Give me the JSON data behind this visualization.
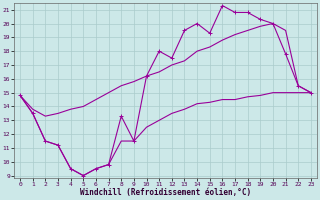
{
  "xlabel": "Windchill (Refroidissement éolien,°C)",
  "bg_color": "#cce8e8",
  "grid_color": "#aacccc",
  "line_color": "#990099",
  "zigzag_x": [
    0,
    1,
    2,
    3,
    4,
    5,
    6,
    7,
    8,
    9,
    10,
    11,
    12,
    13,
    14,
    15,
    16,
    17,
    18,
    19,
    20,
    21,
    22,
    23
  ],
  "zigzag_y": [
    14.8,
    13.5,
    11.5,
    11.2,
    9.5,
    9.0,
    9.5,
    9.8,
    13.3,
    11.5,
    16.2,
    18.0,
    17.5,
    19.5,
    20.0,
    19.3,
    21.3,
    20.8,
    20.8,
    20.3,
    20.0,
    17.8,
    15.5,
    15.0
  ],
  "upper_x": [
    0,
    1,
    2,
    3,
    4,
    5,
    6,
    7,
    8,
    9,
    10,
    11,
    12,
    13,
    14,
    15,
    16,
    17,
    18,
    19,
    20,
    21,
    22,
    23
  ],
  "upper_y": [
    14.8,
    13.8,
    13.3,
    13.5,
    13.8,
    14.0,
    14.5,
    15.0,
    15.5,
    15.8,
    16.2,
    16.5,
    17.0,
    17.3,
    18.0,
    18.3,
    18.8,
    19.2,
    19.5,
    19.8,
    20.0,
    19.5,
    15.5,
    15.0
  ],
  "lower_x": [
    0,
    1,
    2,
    3,
    4,
    5,
    6,
    7,
    8,
    9,
    10,
    11,
    12,
    13,
    14,
    15,
    16,
    17,
    18,
    19,
    20,
    21,
    22,
    23
  ],
  "lower_y": [
    14.8,
    13.5,
    11.5,
    11.2,
    9.5,
    9.0,
    9.5,
    9.8,
    11.5,
    11.5,
    12.5,
    13.0,
    13.5,
    13.8,
    14.2,
    14.3,
    14.5,
    14.5,
    14.7,
    14.8,
    15.0,
    15.0,
    15.0,
    15.0
  ],
  "ylim": [
    8.8,
    21.5
  ],
  "xlim": [
    -0.5,
    23.5
  ],
  "yticks": [
    9,
    10,
    11,
    12,
    13,
    14,
    15,
    16,
    17,
    18,
    19,
    20,
    21
  ],
  "xticks": [
    0,
    1,
    2,
    3,
    4,
    5,
    6,
    7,
    8,
    9,
    10,
    11,
    12,
    13,
    14,
    15,
    16,
    17,
    18,
    19,
    20,
    21,
    22,
    23
  ]
}
